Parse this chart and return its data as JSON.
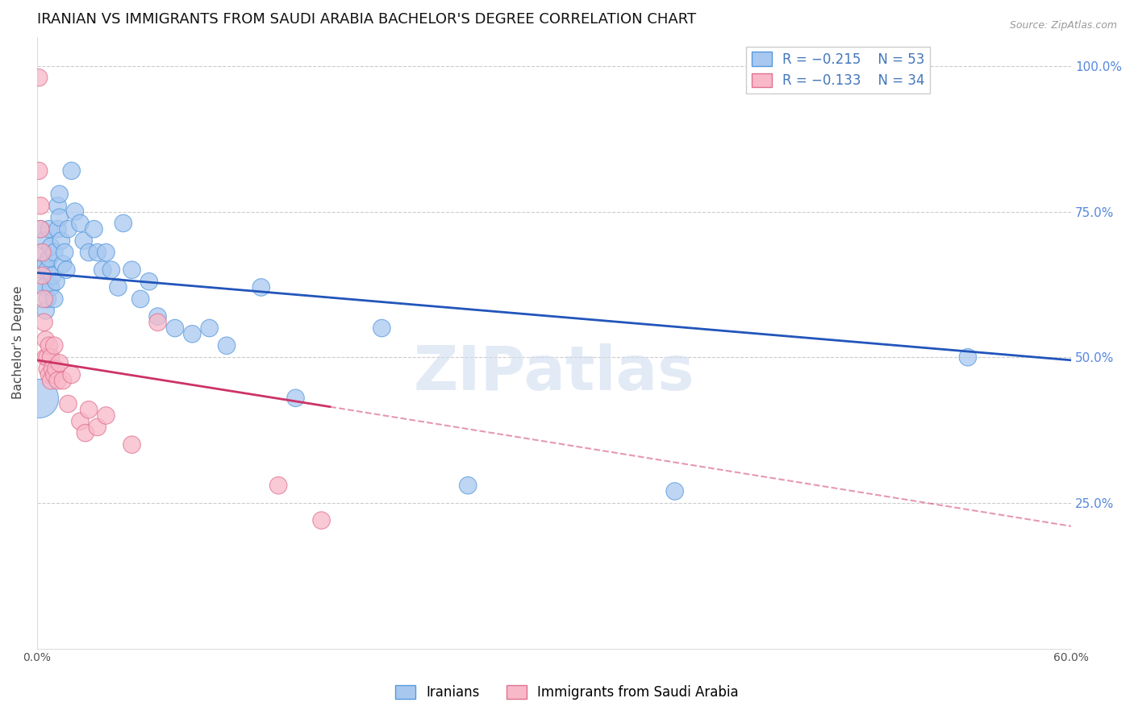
{
  "title": "IRANIAN VS IMMIGRANTS FROM SAUDI ARABIA BACHELOR'S DEGREE CORRELATION CHART",
  "source": "Source: ZipAtlas.com",
  "ylabel": "Bachelor's Degree",
  "xlim": [
    0.0,
    0.6
  ],
  "ylim": [
    0.0,
    1.05
  ],
  "iranians": {
    "color": "#a8c8f0",
    "edge_color": "#5599dd",
    "R": -0.215,
    "N": 53,
    "x": [
      0.001,
      0.002,
      0.002,
      0.003,
      0.004,
      0.004,
      0.005,
      0.005,
      0.006,
      0.006,
      0.007,
      0.007,
      0.008,
      0.008,
      0.009,
      0.01,
      0.01,
      0.011,
      0.012,
      0.012,
      0.013,
      0.013,
      0.014,
      0.015,
      0.016,
      0.017,
      0.018,
      0.02,
      0.022,
      0.025,
      0.027,
      0.03,
      0.033,
      0.035,
      0.038,
      0.04,
      0.043,
      0.047,
      0.05,
      0.055,
      0.06,
      0.065,
      0.07,
      0.08,
      0.09,
      0.1,
      0.11,
      0.13,
      0.15,
      0.2,
      0.25,
      0.37,
      0.54
    ],
    "y": [
      0.63,
      0.68,
      0.72,
      0.65,
      0.62,
      0.7,
      0.58,
      0.66,
      0.6,
      0.65,
      0.72,
      0.67,
      0.62,
      0.69,
      0.64,
      0.6,
      0.68,
      0.63,
      0.76,
      0.72,
      0.78,
      0.74,
      0.7,
      0.66,
      0.68,
      0.65,
      0.72,
      0.82,
      0.75,
      0.73,
      0.7,
      0.68,
      0.72,
      0.68,
      0.65,
      0.68,
      0.65,
      0.62,
      0.73,
      0.65,
      0.6,
      0.63,
      0.57,
      0.55,
      0.54,
      0.55,
      0.52,
      0.62,
      0.43,
      0.55,
      0.28,
      0.27,
      0.5
    ],
    "sizes": [
      30,
      30,
      30,
      30,
      30,
      30,
      30,
      30,
      30,
      30,
      30,
      30,
      30,
      30,
      30,
      30,
      30,
      30,
      30,
      30,
      30,
      30,
      30,
      30,
      30,
      30,
      30,
      30,
      30,
      30,
      30,
      30,
      30,
      30,
      30,
      30,
      30,
      30,
      30,
      30,
      30,
      30,
      30,
      30,
      30,
      30,
      30,
      30,
      30,
      30,
      30,
      30,
      30
    ]
  },
  "iranians_large": {
    "x": [
      0.001
    ],
    "y": [
      0.43
    ],
    "size": 600
  },
  "saudi": {
    "color": "#f8b8c8",
    "edge_color": "#e07090",
    "R": -0.133,
    "N": 34,
    "x": [
      0.001,
      0.001,
      0.002,
      0.002,
      0.003,
      0.003,
      0.004,
      0.004,
      0.005,
      0.005,
      0.006,
      0.006,
      0.007,
      0.007,
      0.008,
      0.008,
      0.009,
      0.01,
      0.01,
      0.011,
      0.012,
      0.013,
      0.015,
      0.018,
      0.02,
      0.025,
      0.028,
      0.03,
      0.035,
      0.04,
      0.055,
      0.07,
      0.14,
      0.165
    ],
    "y": [
      0.98,
      0.82,
      0.76,
      0.72,
      0.68,
      0.64,
      0.6,
      0.56,
      0.53,
      0.5,
      0.48,
      0.5,
      0.47,
      0.52,
      0.46,
      0.5,
      0.48,
      0.47,
      0.52,
      0.48,
      0.46,
      0.49,
      0.46,
      0.42,
      0.47,
      0.39,
      0.37,
      0.41,
      0.38,
      0.4,
      0.35,
      0.56,
      0.28,
      0.22
    ],
    "sizes": [
      30,
      30,
      30,
      30,
      30,
      30,
      30,
      30,
      30,
      30,
      30,
      30,
      30,
      30,
      30,
      30,
      30,
      30,
      30,
      30,
      30,
      30,
      30,
      30,
      30,
      30,
      30,
      30,
      30,
      30,
      30,
      30,
      30,
      30
    ]
  },
  "blue_line": {
    "x0": 0.0,
    "x1": 0.6,
    "y0": 0.645,
    "y1": 0.495
  },
  "pink_line_solid": {
    "x0": 0.0,
    "x1": 0.17,
    "y0": 0.495,
    "y1": 0.415
  },
  "pink_line_dashed": {
    "x0": 0.17,
    "x1": 0.6,
    "y0": 0.415,
    "y1": 0.21
  },
  "watermark": "ZIPatlas",
  "background_color": "#ffffff",
  "grid_color": "#cccccc",
  "title_fontsize": 13,
  "axis_label_fontsize": 11,
  "tick_fontsize": 10,
  "source_fontsize": 9,
  "legend_fontsize": 12
}
